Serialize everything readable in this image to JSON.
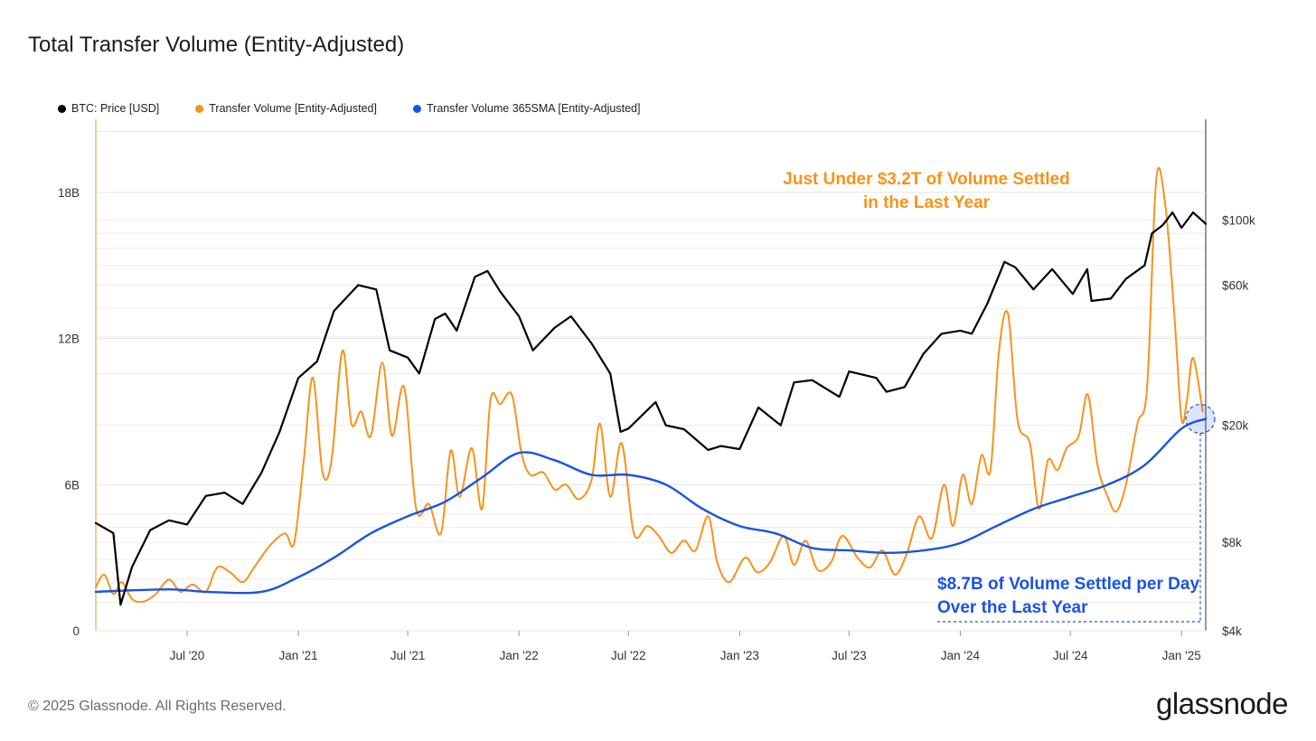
{
  "title": "Total Transfer Volume (Entity-Adjusted)",
  "legend": [
    {
      "label": "BTC: Price [USD]",
      "color": "#000000"
    },
    {
      "label": "Transfer Volume [Entity-Adjusted]",
      "color": "#f7931a"
    },
    {
      "label": "Transfer Volume 365SMA [Entity-Adjusted]",
      "color": "#1a52e6"
    }
  ],
  "annotations": {
    "volume_year": "Just Under $3.2T of Volume Settled in the Last Year",
    "volume_day": "$8.7B of Volume Settled per Day Over the Last Year"
  },
  "footer": {
    "copyright": "© 2025 Glassnode. All Rights Reserved.",
    "logo": "glassnode"
  },
  "chart_data": {
    "type": "line",
    "x_ticks": [
      "Jul '20",
      "Jan '21",
      "Jul '21",
      "Jan '22",
      "Jul '22",
      "Jan '23",
      "Jul '23",
      "Jan '24",
      "Jul '24",
      "Jan '25"
    ],
    "x_range": [
      "2020-02-01",
      "2025-02-10"
    ],
    "y_left": {
      "ticks": [
        "0",
        "6B",
        "12B",
        "18B"
      ],
      "range": [
        0,
        21000000000
      ]
    },
    "y_right": {
      "ticks": [
        "$4k",
        "$8k",
        "$20k",
        "$60k",
        "$100k"
      ],
      "scale": "log",
      "range": [
        4000,
        220000
      ]
    },
    "grid": true,
    "legend_position": "top-left",
    "series": [
      {
        "name": "BTC: Price [USD]",
        "color": "#000000",
        "axis": "right",
        "points": [
          [
            "2020-02-01",
            9300
          ],
          [
            "2020-03-01",
            8600
          ],
          [
            "2020-03-13",
            4900
          ],
          [
            "2020-04-01",
            6600
          ],
          [
            "2020-05-01",
            8800
          ],
          [
            "2020-06-01",
            9500
          ],
          [
            "2020-07-01",
            9200
          ],
          [
            "2020-08-01",
            11500
          ],
          [
            "2020-09-01",
            11800
          ],
          [
            "2020-10-01",
            10800
          ],
          [
            "2020-11-01",
            13800
          ],
          [
            "2020-12-01",
            19000
          ],
          [
            "2021-01-01",
            29000
          ],
          [
            "2021-02-01",
            33000
          ],
          [
            "2021-03-01",
            49000
          ],
          [
            "2021-04-10",
            60000
          ],
          [
            "2021-05-10",
            58000
          ],
          [
            "2021-06-01",
            36000
          ],
          [
            "2021-07-01",
            34000
          ],
          [
            "2021-07-20",
            30000
          ],
          [
            "2021-08-15",
            46000
          ],
          [
            "2021-09-01",
            48000
          ],
          [
            "2021-09-20",
            42000
          ],
          [
            "2021-10-20",
            64000
          ],
          [
            "2021-11-10",
            67000
          ],
          [
            "2021-12-01",
            57000
          ],
          [
            "2022-01-01",
            47000
          ],
          [
            "2022-01-24",
            36000
          ],
          [
            "2022-03-01",
            43000
          ],
          [
            "2022-03-28",
            47000
          ],
          [
            "2022-05-01",
            38000
          ],
          [
            "2022-06-01",
            30000
          ],
          [
            "2022-06-18",
            19000
          ],
          [
            "2022-07-01",
            19500
          ],
          [
            "2022-08-15",
            24000
          ],
          [
            "2022-09-01",
            20000
          ],
          [
            "2022-10-01",
            19400
          ],
          [
            "2022-11-10",
            16500
          ],
          [
            "2022-12-01",
            17000
          ],
          [
            "2023-01-01",
            16600
          ],
          [
            "2023-02-01",
            23000
          ],
          [
            "2023-03-10",
            20000
          ],
          [
            "2023-04-01",
            28000
          ],
          [
            "2023-05-01",
            28500
          ],
          [
            "2023-06-15",
            25000
          ],
          [
            "2023-07-01",
            30500
          ],
          [
            "2023-08-15",
            29000
          ],
          [
            "2023-09-01",
            26000
          ],
          [
            "2023-10-01",
            27000
          ],
          [
            "2023-11-01",
            35000
          ],
          [
            "2023-12-01",
            41000
          ],
          [
            "2024-01-01",
            42000
          ],
          [
            "2024-01-20",
            41000
          ],
          [
            "2024-02-15",
            52000
          ],
          [
            "2024-03-14",
            72000
          ],
          [
            "2024-04-01",
            69000
          ],
          [
            "2024-05-01",
            58000
          ],
          [
            "2024-06-01",
            68000
          ],
          [
            "2024-07-05",
            56000
          ],
          [
            "2024-07-29",
            68000
          ],
          [
            "2024-08-05",
            53000
          ],
          [
            "2024-09-06",
            54000
          ],
          [
            "2024-10-01",
            63000
          ],
          [
            "2024-11-01",
            70000
          ],
          [
            "2024-11-13",
            90000
          ],
          [
            "2024-12-01",
            96000
          ],
          [
            "2024-12-17",
            106000
          ],
          [
            "2025-01-01",
            94000
          ],
          [
            "2025-01-20",
            106000
          ],
          [
            "2025-02-10",
            97000
          ]
        ]
      },
      {
        "name": "Transfer Volume [Entity-Adjusted]",
        "color": "#f7931a",
        "axis": "left",
        "points": [
          [
            "2020-02-01",
            1800000000
          ],
          [
            "2020-02-15",
            2300000000
          ],
          [
            "2020-03-01",
            1500000000
          ],
          [
            "2020-03-15",
            2000000000
          ],
          [
            "2020-04-01",
            1300000000
          ],
          [
            "2020-04-20",
            1200000000
          ],
          [
            "2020-05-10",
            1500000000
          ],
          [
            "2020-06-01",
            2100000000
          ],
          [
            "2020-06-20",
            1600000000
          ],
          [
            "2020-07-10",
            1900000000
          ],
          [
            "2020-08-01",
            1600000000
          ],
          [
            "2020-08-20",
            2600000000
          ],
          [
            "2020-09-10",
            2400000000
          ],
          [
            "2020-10-01",
            2000000000
          ],
          [
            "2020-10-20",
            2600000000
          ],
          [
            "2020-11-15",
            3500000000
          ],
          [
            "2020-12-10",
            4000000000
          ],
          [
            "2020-12-25",
            3600000000
          ],
          [
            "2021-01-10",
            7000000000
          ],
          [
            "2021-01-25",
            10400000000
          ],
          [
            "2021-02-10",
            6500000000
          ],
          [
            "2021-02-25",
            7000000000
          ],
          [
            "2021-03-15",
            11500000000
          ],
          [
            "2021-03-30",
            8500000000
          ],
          [
            "2021-04-15",
            9000000000
          ],
          [
            "2021-05-01",
            8000000000
          ],
          [
            "2021-05-20",
            11000000000
          ],
          [
            "2021-06-05",
            8000000000
          ],
          [
            "2021-06-25",
            10000000000
          ],
          [
            "2021-07-15",
            5000000000
          ],
          [
            "2021-08-05",
            5200000000
          ],
          [
            "2021-08-25",
            4000000000
          ],
          [
            "2021-09-10",
            7400000000
          ],
          [
            "2021-09-25",
            5500000000
          ],
          [
            "2021-10-15",
            7500000000
          ],
          [
            "2021-11-01",
            5000000000
          ],
          [
            "2021-11-15",
            9500000000
          ],
          [
            "2021-12-01",
            9300000000
          ],
          [
            "2021-12-20",
            9700000000
          ],
          [
            "2022-01-05",
            7300000000
          ],
          [
            "2022-01-20",
            6400000000
          ],
          [
            "2022-02-10",
            6500000000
          ],
          [
            "2022-03-01",
            5800000000
          ],
          [
            "2022-03-20",
            6000000000
          ],
          [
            "2022-04-10",
            5400000000
          ],
          [
            "2022-05-01",
            6200000000
          ],
          [
            "2022-05-15",
            8500000000
          ],
          [
            "2022-06-01",
            5500000000
          ],
          [
            "2022-06-20",
            7700000000
          ],
          [
            "2022-07-10",
            4000000000
          ],
          [
            "2022-08-01",
            4300000000
          ],
          [
            "2022-08-20",
            3900000000
          ],
          [
            "2022-09-10",
            3200000000
          ],
          [
            "2022-10-01",
            3700000000
          ],
          [
            "2022-10-20",
            3300000000
          ],
          [
            "2022-11-10",
            4700000000
          ],
          [
            "2022-11-25",
            2800000000
          ],
          [
            "2022-12-15",
            2000000000
          ],
          [
            "2023-01-10",
            3000000000
          ],
          [
            "2023-01-30",
            2400000000
          ],
          [
            "2023-02-20",
            2800000000
          ],
          [
            "2023-03-15",
            3900000000
          ],
          [
            "2023-04-01",
            2700000000
          ],
          [
            "2023-04-20",
            3700000000
          ],
          [
            "2023-05-10",
            2500000000
          ],
          [
            "2023-06-01",
            2800000000
          ],
          [
            "2023-06-20",
            3900000000
          ],
          [
            "2023-07-15",
            3000000000
          ],
          [
            "2023-08-05",
            2600000000
          ],
          [
            "2023-08-25",
            3300000000
          ],
          [
            "2023-09-15",
            2300000000
          ],
          [
            "2023-10-05",
            3200000000
          ],
          [
            "2023-10-25",
            4700000000
          ],
          [
            "2023-11-15",
            3800000000
          ],
          [
            "2023-12-05",
            6000000000
          ],
          [
            "2023-12-20",
            4300000000
          ],
          [
            "2024-01-05",
            6400000000
          ],
          [
            "2024-01-20",
            5200000000
          ],
          [
            "2024-02-05",
            7200000000
          ],
          [
            "2024-02-20",
            6600000000
          ],
          [
            "2024-03-05",
            11500000000
          ],
          [
            "2024-03-20",
            13000000000
          ],
          [
            "2024-04-05",
            8600000000
          ],
          [
            "2024-04-25",
            7700000000
          ],
          [
            "2024-05-10",
            5000000000
          ],
          [
            "2024-05-25",
            7000000000
          ],
          [
            "2024-06-10",
            6600000000
          ],
          [
            "2024-06-25",
            7500000000
          ],
          [
            "2024-07-15",
            8000000000
          ],
          [
            "2024-07-30",
            9700000000
          ],
          [
            "2024-08-15",
            6800000000
          ],
          [
            "2024-09-01",
            5500000000
          ],
          [
            "2024-09-15",
            4900000000
          ],
          [
            "2024-10-01",
            6000000000
          ],
          [
            "2024-10-20",
            8500000000
          ],
          [
            "2024-11-05",
            10000000000
          ],
          [
            "2024-11-20",
            18500000000
          ],
          [
            "2024-12-05",
            17500000000
          ],
          [
            "2024-12-20",
            13000000000
          ],
          [
            "2025-01-01",
            8700000000
          ],
          [
            "2025-01-10",
            9500000000
          ],
          [
            "2025-01-20",
            11200000000
          ],
          [
            "2025-02-05",
            9000000000
          ]
        ]
      },
      {
        "name": "Transfer Volume 365SMA [Entity-Adjusted]",
        "color": "#1a52e6",
        "axis": "left",
        "points": [
          [
            "2020-02-01",
            1600000000
          ],
          [
            "2020-06-01",
            1700000000
          ],
          [
            "2020-08-01",
            1600000000
          ],
          [
            "2020-11-01",
            1600000000
          ],
          [
            "2021-01-01",
            2200000000
          ],
          [
            "2021-03-01",
            3000000000
          ],
          [
            "2021-05-01",
            4000000000
          ],
          [
            "2021-07-01",
            4700000000
          ],
          [
            "2021-09-01",
            5300000000
          ],
          [
            "2021-11-01",
            6300000000
          ],
          [
            "2022-01-01",
            7300000000
          ],
          [
            "2022-03-01",
            7000000000
          ],
          [
            "2022-05-01",
            6400000000
          ],
          [
            "2022-07-01",
            6400000000
          ],
          [
            "2022-09-01",
            6000000000
          ],
          [
            "2022-11-01",
            5000000000
          ],
          [
            "2023-01-01",
            4300000000
          ],
          [
            "2023-03-01",
            4000000000
          ],
          [
            "2023-05-01",
            3400000000
          ],
          [
            "2023-07-01",
            3300000000
          ],
          [
            "2023-09-01",
            3200000000
          ],
          [
            "2023-11-01",
            3300000000
          ],
          [
            "2024-01-01",
            3600000000
          ],
          [
            "2024-03-01",
            4300000000
          ],
          [
            "2024-05-01",
            5000000000
          ],
          [
            "2024-07-01",
            5500000000
          ],
          [
            "2024-09-01",
            6000000000
          ],
          [
            "2024-11-01",
            6800000000
          ],
          [
            "2025-01-01",
            8300000000
          ],
          [
            "2025-02-10",
            8700000000
          ]
        ]
      }
    ]
  }
}
